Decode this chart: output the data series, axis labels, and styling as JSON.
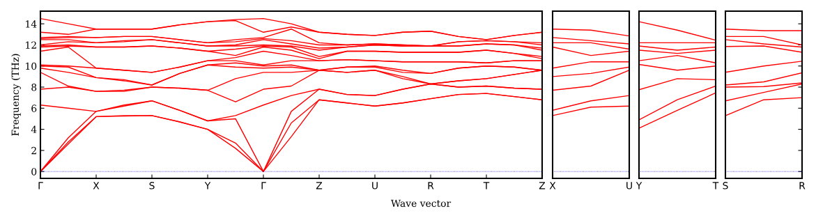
{
  "chart_data": [
    {
      "type": "line",
      "ylabel": "Frequency (THz)",
      "xlabel": "Wave vector",
      "categories": [
        "Γ",
        null,
        "X",
        null,
        "S",
        null,
        "Y",
        null,
        "Γ",
        null,
        "Z",
        null,
        "U",
        null,
        "R",
        null,
        "T",
        null,
        "Z"
      ],
      "ylim": [
        -0.65,
        15.2
      ],
      "yticks": [
        0,
        2,
        4,
        6,
        8,
        10,
        12,
        14
      ],
      "grid": false,
      "marker": "none",
      "line_style": "solid",
      "ref_lines": [
        {
          "axis": "y",
          "value": 0,
          "color": "#0000ff",
          "line_style": "dotted"
        }
      ],
      "series": [
        {
          "color": "#ff0000",
          "values": [
            0,
            2.6,
            5.2,
            5.25,
            5.3,
            4.7,
            4.0,
            2.2,
            0,
            3.3,
            6.8,
            6.5,
            6.2,
            6.5,
            6.9,
            7.3,
            7.4,
            7.1,
            6.8
          ]
        },
        {
          "color": "#ff0000",
          "values": [
            0,
            2.8,
            5.2,
            5.3,
            5.3,
            4.7,
            4.0,
            2.7,
            0,
            4.6,
            6.8,
            6.5,
            6.2,
            6.5,
            6.9,
            7.3,
            7.4,
            7.1,
            6.8
          ]
        },
        {
          "color": "#ff0000",
          "values": [
            0,
            3.2,
            5.7,
            6.2,
            6.7,
            5.8,
            4.8,
            5.0,
            0,
            5.7,
            7.8,
            7.3,
            7.2,
            7.8,
            8.3,
            8.0,
            8.1,
            7.9,
            7.8
          ]
        },
        {
          "color": "#ff0000",
          "values": [
            6.3,
            6.0,
            5.7,
            6.3,
            6.7,
            5.8,
            4.8,
            5.3,
            6.3,
            7.2,
            7.8,
            7.3,
            7.2,
            7.8,
            8.3,
            8.0,
            8.1,
            7.9,
            7.8
          ]
        },
        {
          "color": "#ff0000",
          "values": [
            7.8,
            8.0,
            7.6,
            7.6,
            8.0,
            7.9,
            7.7,
            6.6,
            7.8,
            8.1,
            9.6,
            9.4,
            9.6,
            8.8,
            8.3,
            8.6,
            8.8,
            9.2,
            9.6
          ]
        },
        {
          "color": "#ff0000",
          "values": [
            9.4,
            8.1,
            7.6,
            7.7,
            8.0,
            7.9,
            7.7,
            8.8,
            9.4,
            9.4,
            9.6,
            9.4,
            9.6,
            9.0,
            8.3,
            8.6,
            8.8,
            9.2,
            9.6
          ]
        },
        {
          "color": "#ff0000",
          "values": [
            9.8,
            9.4,
            8.9,
            8.6,
            8.2,
            9.3,
            10.1,
            9.9,
            9.8,
            9.9,
            9.6,
            9.9,
            9.9,
            9.4,
            9.3,
            9.8,
            10.0,
            9.9,
            9.6
          ]
        },
        {
          "color": "#ff0000",
          "values": [
            10.0,
            9.9,
            8.9,
            8.7,
            8.2,
            9.3,
            10.1,
            10.3,
            10.0,
            10.1,
            9.6,
            9.9,
            10.0,
            9.6,
            9.3,
            9.8,
            10.0,
            9.9,
            9.6
          ]
        },
        {
          "color": "#ff0000",
          "values": [
            10.1,
            10.0,
            9.8,
            9.6,
            9.4,
            9.9,
            10.5,
            10.5,
            10.1,
            10.5,
            10.5,
            10.6,
            10.5,
            10.4,
            10.4,
            10.4,
            10.3,
            10.5,
            10.5
          ]
        },
        {
          "color": "#ff0000",
          "values": [
            11.4,
            11.8,
            9.8,
            9.6,
            9.4,
            9.9,
            10.5,
            10.8,
            11.4,
            11.0,
            10.5,
            10.6,
            10.5,
            10.4,
            10.4,
            10.4,
            10.3,
            10.5,
            10.5
          ]
        },
        {
          "color": "#ff0000",
          "values": [
            11.8,
            11.9,
            11.8,
            11.8,
            11.9,
            11.7,
            11.4,
            11.0,
            11.8,
            11.5,
            10.7,
            11.4,
            11.4,
            11.3,
            11.3,
            11.3,
            11.5,
            11.2,
            10.7
          ]
        },
        {
          "color": "#ff0000",
          "values": [
            11.9,
            12.0,
            11.8,
            11.8,
            11.9,
            11.7,
            11.4,
            11.6,
            11.9,
            11.8,
            10.9,
            11.4,
            11.4,
            11.3,
            11.3,
            11.3,
            11.5,
            11.2,
            10.9
          ]
        },
        {
          "color": "#ff0000",
          "values": [
            12.0,
            12.3,
            12.2,
            12.3,
            12.5,
            12.2,
            11.9,
            11.9,
            12.0,
            11.9,
            11.5,
            11.8,
            12.0,
            11.9,
            11.9,
            11.9,
            12.1,
            12.0,
            11.5
          ]
        },
        {
          "color": "#ff0000",
          "values": [
            12.5,
            12.5,
            12.2,
            12.4,
            12.5,
            12.2,
            11.9,
            12.0,
            12.5,
            12.1,
            11.7,
            11.8,
            12.0,
            11.9,
            11.9,
            11.9,
            12.1,
            12.0,
            11.7
          ]
        },
        {
          "color": "#ff0000",
          "values": [
            12.6,
            12.7,
            12.7,
            12.8,
            12.8,
            12.5,
            12.2,
            12.3,
            12.6,
            12.4,
            12.0,
            12.0,
            12.1,
            12.0,
            11.9,
            12.3,
            12.4,
            12.3,
            12.0
          ]
        },
        {
          "color": "#ff0000",
          "values": [
            12.7,
            12.8,
            12.7,
            12.8,
            12.8,
            12.5,
            12.2,
            12.5,
            12.7,
            13.5,
            12.2,
            12.0,
            12.1,
            12.0,
            11.9,
            12.3,
            12.4,
            12.3,
            12.2
          ]
        },
        {
          "color": "#ff0000",
          "values": [
            13.2,
            13.0,
            13.5,
            13.5,
            13.5,
            13.9,
            14.2,
            14.3,
            13.2,
            13.7,
            13.2,
            13.0,
            12.9,
            13.2,
            13.3,
            12.8,
            12.5,
            12.9,
            13.2
          ]
        },
        {
          "color": "#ff0000",
          "values": [
            14.5,
            14.0,
            13.5,
            13.5,
            13.5,
            13.9,
            14.2,
            14.4,
            14.5,
            14.0,
            13.2,
            13.0,
            12.9,
            13.2,
            13.3,
            12.8,
            12.5,
            12.9,
            13.2
          ]
        }
      ]
    },
    {
      "type": "line",
      "categories": [
        "X",
        null,
        "U"
      ],
      "ylim": [
        -0.65,
        15.2
      ],
      "yticks": [
        0,
        2,
        4,
        6,
        8,
        10,
        12,
        14
      ],
      "tick_labels": "x",
      "marker": "none",
      "line_style": "solid",
      "ref_lines": [
        {
          "axis": "y",
          "value": 0,
          "color": "#0000ff",
          "line_style": "dotted"
        }
      ],
      "series": [
        {
          "color": "#ff0000",
          "values": [
            5.3,
            6.1,
            6.2
          ]
        },
        {
          "color": "#ff0000",
          "values": [
            5.8,
            6.7,
            7.2
          ]
        },
        {
          "color": "#ff0000",
          "values": [
            7.7,
            8.1,
            9.6
          ]
        },
        {
          "color": "#ff0000",
          "values": [
            9.0,
            9.3,
            9.9
          ]
        },
        {
          "color": "#ff0000",
          "values": [
            9.8,
            10.4,
            10.4
          ]
        },
        {
          "color": "#ff0000",
          "values": [
            11.8,
            11.0,
            11.4
          ]
        },
        {
          "color": "#ff0000",
          "values": [
            12.2,
            12.2,
            11.6
          ]
        },
        {
          "color": "#ff0000",
          "values": [
            12.7,
            12.4,
            12.1
          ]
        },
        {
          "color": "#ff0000",
          "values": [
            13.5,
            13.4,
            12.85
          ]
        }
      ]
    },
    {
      "type": "line",
      "categories": [
        "Y",
        null,
        "T"
      ],
      "ylim": [
        -0.65,
        15.2
      ],
      "yticks": [
        0,
        2,
        4,
        6,
        8,
        10,
        12,
        14
      ],
      "tick_labels": "x",
      "marker": "none",
      "line_style": "solid",
      "ref_lines": [
        {
          "axis": "y",
          "value": 0,
          "color": "#0000ff",
          "line_style": "dotted"
        }
      ],
      "series": [
        {
          "color": "#ff0000",
          "values": [
            4.1,
            5.8,
            7.45
          ]
        },
        {
          "color": "#ff0000",
          "values": [
            4.9,
            6.8,
            8.1
          ]
        },
        {
          "color": "#ff0000",
          "values": [
            7.75,
            8.8,
            8.7
          ]
        },
        {
          "color": "#ff0000",
          "values": [
            10.15,
            9.6,
            10.0
          ]
        },
        {
          "color": "#ff0000",
          "values": [
            10.5,
            11.0,
            10.3
          ]
        },
        {
          "color": "#ff0000",
          "values": [
            11.5,
            11.2,
            11.5
          ]
        },
        {
          "color": "#ff0000",
          "values": [
            11.9,
            11.5,
            11.8
          ]
        },
        {
          "color": "#ff0000",
          "values": [
            12.2,
            12.2,
            12.2
          ]
        },
        {
          "color": "#ff0000",
          "values": [
            14.2,
            13.4,
            12.45
          ]
        }
      ]
    },
    {
      "type": "line",
      "categories": [
        "S",
        null,
        "R"
      ],
      "ylim": [
        -0.65,
        15.2
      ],
      "yticks": [
        0,
        2,
        4,
        6,
        8,
        10,
        12,
        14
      ],
      "tick_labels": "x",
      "marker": "none",
      "line_style": "solid",
      "ref_lines": [
        {
          "axis": "y",
          "value": 0,
          "color": "#0000ff",
          "line_style": "dotted"
        }
      ],
      "series": [
        {
          "color": "#ff0000",
          "values": [
            5.3,
            6.8,
            7.0
          ]
        },
        {
          "color": "#ff0000",
          "values": [
            6.7,
            7.5,
            8.3
          ]
        },
        {
          "color": "#ff0000",
          "values": [
            8.0,
            8.05,
            8.4
          ]
        },
        {
          "color": "#ff0000",
          "values": [
            8.2,
            8.5,
            9.35
          ]
        },
        {
          "color": "#ff0000",
          "values": [
            9.4,
            10.0,
            10.45
          ]
        },
        {
          "color": "#ff0000",
          "values": [
            11.85,
            11.9,
            11.3
          ]
        },
        {
          "color": "#ff0000",
          "values": [
            12.5,
            12.1,
            11.8
          ]
        },
        {
          "color": "#ff0000",
          "values": [
            12.8,
            12.8,
            12.0
          ]
        },
        {
          "color": "#ff0000",
          "values": [
            13.5,
            13.35,
            13.35
          ]
        }
      ]
    }
  ]
}
